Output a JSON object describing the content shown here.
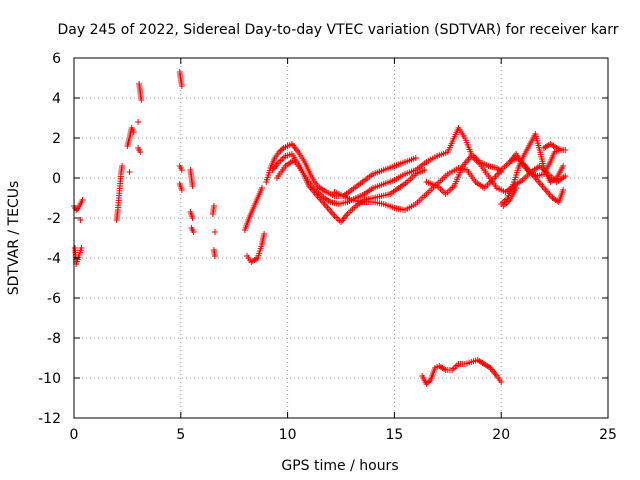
{
  "chart_data": {
    "type": "scatter",
    "title": "Day 245 of 2022, Sidereal Day-to-day VTEC variation (SDTVAR) for receiver karr",
    "xlabel": "GPS time / hours",
    "ylabel": "SDTVAR / TECUs",
    "xlim": [
      0,
      25
    ],
    "ylim": [
      -12,
      6
    ],
    "xticks": [
      0,
      5,
      10,
      15,
      20,
      25
    ],
    "yticks": [
      -12,
      -10,
      -8,
      -6,
      -4,
      -2,
      0,
      2,
      4,
      6
    ],
    "grid": true,
    "marker": "+",
    "series": [
      {
        "name": "SDTVAR",
        "color": "#ff0000",
        "segments": [
          [
            [
              0.0,
              -1.4
            ],
            [
              0.1,
              -1.6
            ],
            [
              0.2,
              -1.5
            ],
            [
              0.3,
              -1.3
            ],
            [
              0.4,
              -1.1
            ]
          ],
          [
            [
              0.05,
              -3.5
            ],
            [
              0.1,
              -4.3
            ],
            [
              0.35,
              -3.5
            ]
          ],
          [
            [
              0.3,
              -2.1
            ]
          ],
          [
            [
              2.0,
              -2.1
            ],
            [
              2.05,
              -1.6
            ],
            [
              2.1,
              -1.0
            ],
            [
              2.15,
              -0.4
            ],
            [
              2.2,
              0.2
            ],
            [
              2.25,
              0.6
            ]
          ],
          [
            [
              2.5,
              1.6
            ],
            [
              2.6,
              2.0
            ],
            [
              2.7,
              2.5
            ],
            [
              2.8,
              2.3
            ]
          ],
          [
            [
              2.6,
              0.3
            ]
          ],
          [
            [
              3.0,
              2.8
            ]
          ],
          [
            [
              3.0,
              1.5
            ],
            [
              3.1,
              1.3
            ]
          ],
          [
            [
              3.05,
              4.7
            ],
            [
              3.1,
              4.3
            ],
            [
              3.15,
              3.9
            ]
          ],
          [
            [
              4.95,
              5.3
            ],
            [
              5.0,
              4.9
            ],
            [
              5.05,
              4.6
            ]
          ],
          [
            [
              4.95,
              0.6
            ],
            [
              5.05,
              0.4
            ]
          ],
          [
            [
              4.95,
              -0.3
            ],
            [
              5.05,
              -0.6
            ]
          ],
          [
            [
              5.45,
              0.4
            ],
            [
              5.5,
              0.0
            ],
            [
              5.55,
              -0.4
            ]
          ],
          [
            [
              5.45,
              -1.7
            ],
            [
              5.55,
              -2.0
            ]
          ],
          [
            [
              5.5,
              -2.5
            ],
            [
              5.6,
              -2.7
            ]
          ],
          [
            [
              6.5,
              -1.8
            ],
            [
              6.55,
              -1.4
            ]
          ],
          [
            [
              6.55,
              -3.6
            ],
            [
              6.6,
              -3.9
            ]
          ],
          [
            [
              6.6,
              -2.7
            ]
          ],
          [
            [
              8.0,
              -2.6
            ],
            [
              8.2,
              -2.0
            ],
            [
              8.4,
              -1.5
            ],
            [
              8.6,
              -1.0
            ],
            [
              8.8,
              -0.5
            ]
          ],
          [
            [
              8.1,
              -3.9
            ],
            [
              8.3,
              -4.2
            ],
            [
              8.6,
              -4.0
            ],
            [
              8.8,
              -3.3
            ],
            [
              8.9,
              -2.8
            ]
          ],
          [
            [
              9.0,
              -0.2
            ],
            [
              9.2,
              0.5
            ],
            [
              9.4,
              1.0
            ],
            [
              9.6,
              1.3
            ],
            [
              9.8,
              1.5
            ],
            [
              10.0,
              1.6
            ],
            [
              10.2,
              1.7
            ],
            [
              10.5,
              1.3
            ],
            [
              10.8,
              0.8
            ],
            [
              11.1,
              0.1
            ],
            [
              11.4,
              -0.4
            ],
            [
              11.8,
              -0.7
            ],
            [
              12.2,
              -0.9
            ],
            [
              12.6,
              -0.9
            ],
            [
              13.0,
              -0.6
            ],
            [
              13.5,
              -0.2
            ],
            [
              14.0,
              0.2
            ],
            [
              14.5,
              0.4
            ],
            [
              15.0,
              0.6
            ],
            [
              15.5,
              0.8
            ],
            [
              16.0,
              1.0
            ]
          ],
          [
            [
              9.3,
              0.4
            ],
            [
              9.6,
              0.8
            ],
            [
              9.9,
              1.1
            ],
            [
              10.2,
              1.2
            ],
            [
              10.5,
              0.7
            ],
            [
              10.8,
              0.1
            ],
            [
              11.2,
              -0.5
            ],
            [
              11.6,
              -0.9
            ],
            [
              12.0,
              -1.2
            ],
            [
              12.4,
              -1.3
            ],
            [
              12.8,
              -1.2
            ],
            [
              13.2,
              -1.0
            ],
            [
              13.6,
              -0.8
            ],
            [
              14.0,
              -0.5
            ],
            [
              14.5,
              -0.3
            ],
            [
              15.0,
              -0.1
            ],
            [
              15.5,
              0.2
            ],
            [
              16.0,
              0.4
            ],
            [
              16.5,
              0.8
            ],
            [
              17.0,
              1.1
            ],
            [
              17.5,
              1.3
            ],
            [
              18.0,
              2.5
            ],
            [
              18.3,
              2.0
            ],
            [
              18.6,
              1.2
            ],
            [
              19.0,
              0.8
            ],
            [
              19.4,
              0.6
            ],
            [
              19.8,
              0.5
            ],
            [
              20.0,
              0.3
            ]
          ],
          [
            [
              9.5,
              0.0
            ],
            [
              9.9,
              0.6
            ],
            [
              10.3,
              0.9
            ],
            [
              10.7,
              0.3
            ],
            [
              11.0,
              -0.4
            ],
            [
              11.4,
              -0.9
            ],
            [
              11.8,
              -1.4
            ],
            [
              12.2,
              -1.9
            ],
            [
              12.5,
              -2.2
            ],
            [
              12.8,
              -1.8
            ],
            [
              13.2,
              -1.4
            ],
            [
              13.6,
              -1.1
            ],
            [
              14.0,
              -1.0
            ],
            [
              14.4,
              -0.9
            ],
            [
              14.8,
              -0.8
            ],
            [
              15.2,
              -0.5
            ],
            [
              15.6,
              -0.2
            ],
            [
              16.0,
              0.2
            ],
            [
              16.4,
              0.4
            ]
          ],
          [
            [
              12.2,
              -0.7
            ],
            [
              12.6,
              -0.9
            ],
            [
              13.0,
              -1.1
            ],
            [
              13.5,
              -1.2
            ],
            [
              14.0,
              -1.2
            ],
            [
              14.5,
              -1.3
            ],
            [
              15.0,
              -1.5
            ],
            [
              15.5,
              -1.6
            ],
            [
              16.0,
              -1.3
            ],
            [
              16.5,
              -0.8
            ],
            [
              17.0,
              -0.3
            ],
            [
              17.5,
              0.2
            ],
            [
              18.0,
              0.5
            ],
            [
              18.4,
              0.4
            ],
            [
              18.8,
              -0.2
            ],
            [
              19.2,
              -0.5
            ],
            [
              19.6,
              -0.1
            ],
            [
              20.0,
              0.4
            ],
            [
              20.4,
              0.8
            ],
            [
              20.8,
              1.0
            ],
            [
              21.2,
              0.5
            ],
            [
              21.6,
              0.0
            ],
            [
              22.0,
              -0.5
            ],
            [
              22.4,
              -1.0
            ],
            [
              22.7,
              -1.2
            ],
            [
              22.9,
              -0.6
            ]
          ],
          [
            [
              16.5,
              -0.2
            ],
            [
              17.0,
              -0.4
            ],
            [
              17.4,
              -0.8
            ],
            [
              17.8,
              -0.4
            ],
            [
              18.2,
              0.6
            ],
            [
              18.6,
              1.1
            ],
            [
              19.0,
              0.7
            ],
            [
              19.4,
              0.1
            ],
            [
              19.8,
              -0.5
            ],
            [
              20.2,
              -0.7
            ],
            [
              20.6,
              -0.4
            ],
            [
              21.0,
              -0.1
            ],
            [
              21.4,
              0.3
            ],
            [
              21.8,
              0.6
            ],
            [
              22.2,
              0.2
            ],
            [
              22.6,
              -0.2
            ],
            [
              23.0,
              0.1
            ]
          ],
          [
            [
              20.0,
              -1.3
            ],
            [
              20.3,
              -1.0
            ],
            [
              20.6,
              -0.2
            ],
            [
              20.8,
              0.5
            ],
            [
              21.0,
              1.0
            ],
            [
              21.3,
              1.6
            ],
            [
              21.6,
              2.2
            ],
            [
              21.8,
              1.4
            ],
            [
              22.0,
              0.5
            ],
            [
              22.3,
              -0.2
            ],
            [
              22.6,
              0.0
            ],
            [
              22.9,
              0.6
            ]
          ],
          [
            [
              20.1,
              -1.4
            ],
            [
              20.4,
              -1.1
            ],
            [
              20.7,
              -0.5
            ]
          ],
          [
            [
              20.4,
              0.8
            ],
            [
              20.7,
              1.2
            ],
            [
              21.0,
              0.7
            ],
            [
              21.3,
              0.3
            ],
            [
              21.7,
              0.1
            ],
            [
              22.0,
              0.2
            ],
            [
              22.3,
              0.8
            ],
            [
              22.5,
              1.3
            ],
            [
              22.8,
              1.4
            ],
            [
              23.0,
              1.4
            ]
          ],
          [
            [
              22.0,
              1.5
            ],
            [
              22.3,
              1.7
            ],
            [
              22.6,
              1.5
            ],
            [
              22.9,
              1.4
            ]
          ],
          [
            [
              16.3,
              -9.9
            ],
            [
              16.5,
              -10.3
            ],
            [
              16.7,
              -10.1
            ],
            [
              16.9,
              -9.5
            ],
            [
              17.1,
              -9.4
            ],
            [
              17.4,
              -9.6
            ],
            [
              17.7,
              -9.6
            ],
            [
              18.0,
              -9.3
            ],
            [
              18.3,
              -9.3
            ],
            [
              18.6,
              -9.2
            ],
            [
              18.9,
              -9.1
            ],
            [
              19.2,
              -9.3
            ],
            [
              19.5,
              -9.5
            ],
            [
              19.8,
              -9.9
            ],
            [
              20.0,
              -10.2
            ]
          ]
        ]
      }
    ]
  }
}
